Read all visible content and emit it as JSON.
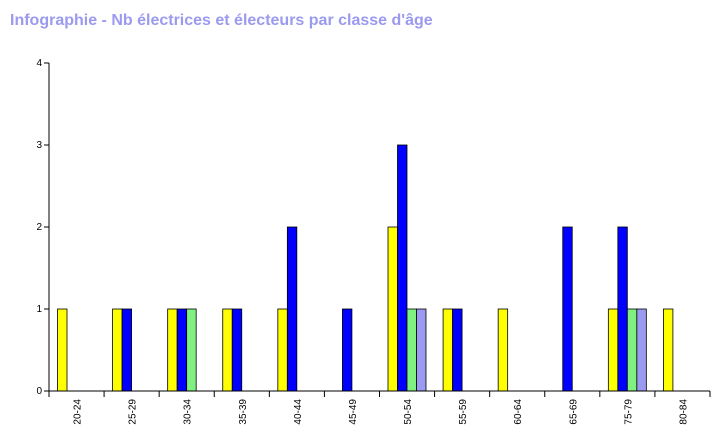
{
  "title": "Infographie - Nb électrices et électeurs par classe d'âge",
  "chart_data": {
    "type": "bar",
    "title": "Infographie - Nb électrices et électeurs par classe d'âge",
    "xlabel": "",
    "ylabel": "",
    "ylim": [
      0,
      4
    ],
    "yticks": [
      "0",
      "1",
      "2",
      "3",
      "4"
    ],
    "grid": false,
    "legend": "none",
    "categories": [
      "20-24",
      "25-29",
      "30-34",
      "35-39",
      "40-44",
      "45-49",
      "50-54",
      "55-59",
      "60-64",
      "65-69",
      "75-79",
      "80-84"
    ],
    "series": [
      {
        "color": "#ffff00",
        "values": [
          1,
          1,
          1,
          1,
          1,
          0,
          2,
          1,
          1,
          0,
          1,
          1
        ]
      },
      {
        "color": "#0000ff",
        "values": [
          0,
          1,
          1,
          1,
          2,
          1,
          3,
          1,
          0,
          2,
          2,
          0
        ]
      },
      {
        "color": "#80f080",
        "values": [
          0,
          0,
          1,
          0,
          0,
          0,
          1,
          0,
          0,
          0,
          1,
          0
        ]
      },
      {
        "color": "#9a9af0",
        "values": [
          0,
          0,
          0,
          0,
          0,
          0,
          1,
          0,
          0,
          0,
          1,
          0
        ]
      }
    ]
  }
}
